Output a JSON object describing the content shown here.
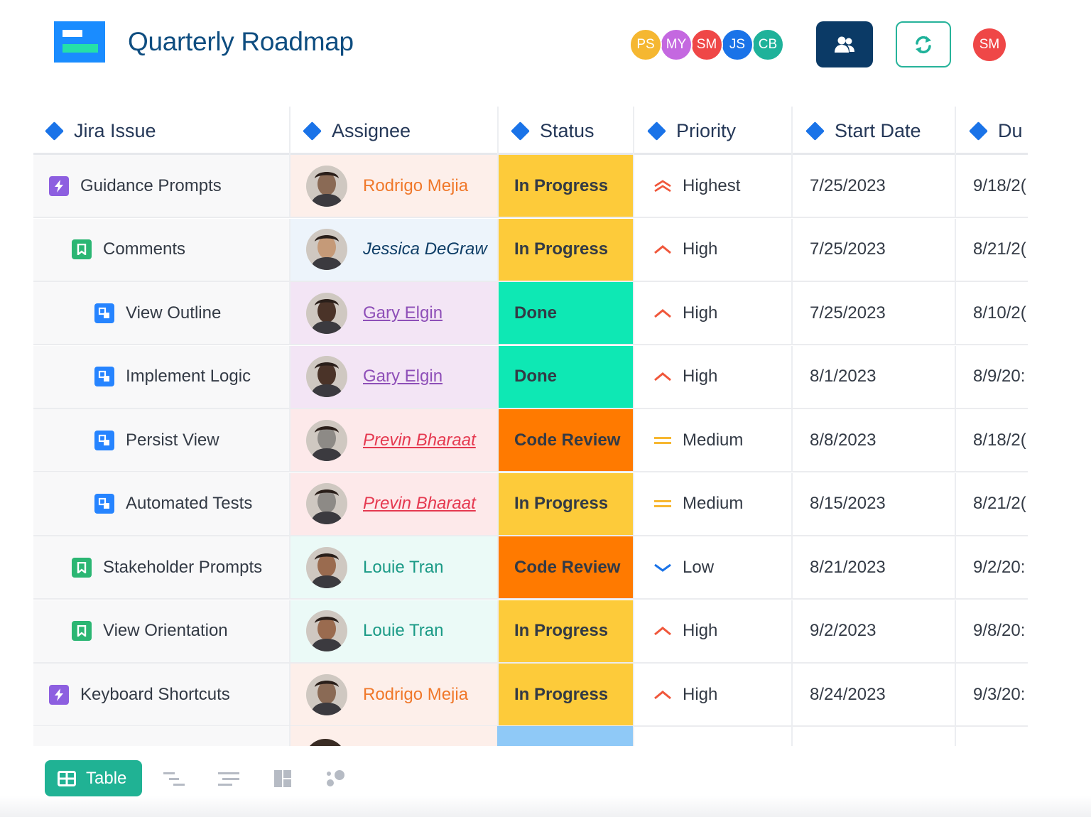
{
  "header": {
    "title": "Quarterly Roadmap",
    "collaborators": [
      {
        "initials": "PS",
        "color": "#f5b731"
      },
      {
        "initials": "MY",
        "color": "#c468e0"
      },
      {
        "initials": "SM",
        "color": "#ef4747"
      },
      {
        "initials": "JS",
        "color": "#1a73e8"
      },
      {
        "initials": "CB",
        "color": "#1fb29a"
      }
    ],
    "current_user": {
      "initials": "SM",
      "color": "#ef4747"
    }
  },
  "columns": [
    "Jira Issue",
    "Assignee",
    "Status",
    "Priority",
    "Start Date",
    "Du"
  ],
  "rows": [
    {
      "issue": "Guidance Prompts",
      "type": "epic",
      "indent": 0,
      "assignee": "Rodrigo Mejia",
      "status": "In Progress",
      "priority": "Highest",
      "start": "7/25/2023",
      "due": "9/18/2("
    },
    {
      "issue": "Comments",
      "type": "story",
      "indent": 1,
      "assignee": "Jessica DeGraw",
      "status": "In Progress",
      "priority": "High",
      "start": "7/25/2023",
      "due": "8/21/2("
    },
    {
      "issue": "View Outline",
      "type": "subtask",
      "indent": 2,
      "assignee": "Gary Elgin",
      "status": "Done",
      "priority": "High",
      "start": "7/25/2023",
      "due": "8/10/2("
    },
    {
      "issue": "Implement Logic",
      "type": "subtask",
      "indent": 2,
      "assignee": "Gary Elgin",
      "status": "Done",
      "priority": "High",
      "start": "8/1/2023",
      "due": "8/9/20:"
    },
    {
      "issue": "Persist View",
      "type": "subtask",
      "indent": 2,
      "assignee": "Previn Bharaat",
      "status": "Code Review",
      "priority": "Medium",
      "start": "8/8/2023",
      "due": "8/18/2("
    },
    {
      "issue": "Automated Tests",
      "type": "subtask",
      "indent": 2,
      "assignee": "Previn Bharaat",
      "status": "In Progress",
      "priority": "Medium",
      "start": "8/15/2023",
      "due": "8/21/2("
    },
    {
      "issue": "Stakeholder Prompts",
      "type": "story",
      "indent": 1,
      "assignee": "Louie Tran",
      "status": "Code Review",
      "priority": "Low",
      "start": "8/21/2023",
      "due": "9/2/20:"
    },
    {
      "issue": "View Orientation",
      "type": "story",
      "indent": 1,
      "assignee": "Louie Tran",
      "status": "In Progress",
      "priority": "High",
      "start": "9/2/2023",
      "due": "9/8/20:"
    },
    {
      "issue": "Keyboard Shortcuts",
      "type": "epic",
      "indent": 0,
      "assignee": "Rodrigo Mejia",
      "status": "In Progress",
      "priority": "High",
      "start": "8/24/2023",
      "due": "9/3/20:"
    }
  ],
  "assignee_styles": {
    "Rodrigo Mejia": {
      "bg": "#fdefea",
      "color": "#f0782a",
      "italic": false,
      "underline": false,
      "bold": false,
      "face": "#8a6a55"
    },
    "Jessica DeGraw": {
      "bg": "#edf4fb",
      "color": "#0e3d66",
      "italic": true,
      "underline": false,
      "bold": false,
      "face": "#c59a78"
    },
    "Gary Elgin": {
      "bg": "#f3e5f5",
      "color": "#8e4fb8",
      "italic": false,
      "underline": true,
      "bold": false,
      "face": "#4a3328"
    },
    "Previn Bharaat": {
      "bg": "#fde9ea",
      "color": "#e53950",
      "italic": true,
      "underline": true,
      "bold": false,
      "face": "#8d8a86"
    },
    "Louie Tran": {
      "bg": "#ebfaf7",
      "color": "#1a9a86",
      "italic": false,
      "underline": false,
      "bold": false,
      "face": "#9a6b4f"
    }
  },
  "status_colors": {
    "In Progress": "#fdcb3a",
    "Done": "#0ee8b4",
    "Code Review": "#ff7a00"
  },
  "priority_styles": {
    "Highest": {
      "icon": "double-chevron-up-icon",
      "color": "#f0573b"
    },
    "High": {
      "icon": "chevron-up-icon",
      "color": "#f0573b"
    },
    "Medium": {
      "icon": "equals-icon",
      "color": "#f7b731"
    },
    "Low": {
      "icon": "chevron-down-icon",
      "color": "#1a73e8"
    }
  },
  "footer": {
    "table_label": "Table",
    "views": [
      "hierarchy-icon",
      "outline-icon",
      "board-icon",
      "graph-icon"
    ]
  }
}
